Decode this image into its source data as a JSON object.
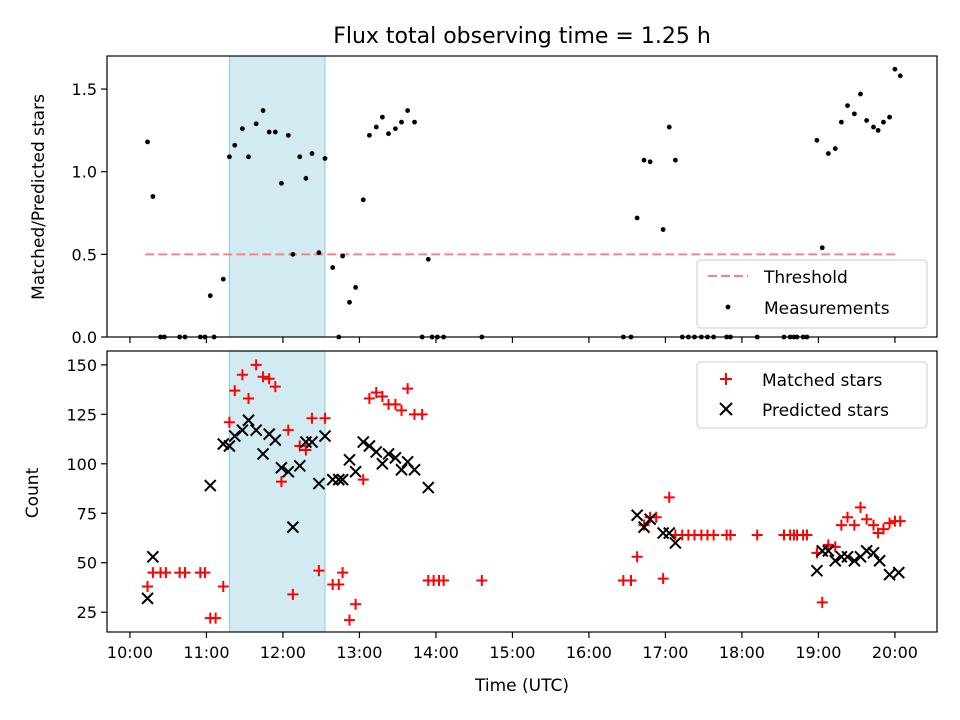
{
  "title": "Flux total observing time = 1.25 h",
  "chart_data": [
    {
      "type": "scatter",
      "panel": "top",
      "ylabel": "Matched/Predicted stars",
      "ylim": [
        0,
        1.7
      ],
      "yticks": [
        0.0,
        0.5,
        1.0,
        1.5
      ],
      "yticklabels": [
        "0.0",
        "0.5",
        "1.0",
        "1.5"
      ],
      "xlim": [
        9.7,
        20.55
      ],
      "xticks": [
        10,
        11,
        12,
        13,
        14,
        15,
        16,
        17,
        18,
        19,
        20
      ],
      "show_xticklabels": false,
      "shaded_region": {
        "x_start": 11.3,
        "x_end": 12.55,
        "color": "#add8e6"
      },
      "legend": {
        "location": "lower right",
        "entries": [
          "Threshold",
          "Measurements"
        ]
      },
      "threshold": {
        "name": "Threshold",
        "y": 0.5,
        "x_start": 10.2,
        "x_end": 20.05,
        "color": "#ff8080",
        "style": "dashed"
      },
      "series": [
        {
          "name": "Measurements",
          "color": "#000000",
          "marker": "dot",
          "points": [
            [
              10.23,
              1.18
            ],
            [
              10.3,
              0.85
            ],
            [
              10.4,
              0
            ],
            [
              10.45,
              0
            ],
            [
              10.65,
              0
            ],
            [
              10.72,
              0
            ],
            [
              10.92,
              0
            ],
            [
              10.98,
              0
            ],
            [
              11.05,
              0.25
            ],
            [
              11.1,
              0
            ],
            [
              11.22,
              0.35
            ],
            [
              11.3,
              1.09
            ],
            [
              11.37,
              1.16
            ],
            [
              11.47,
              1.26
            ],
            [
              11.55,
              1.09
            ],
            [
              11.65,
              1.29
            ],
            [
              11.74,
              1.37
            ],
            [
              11.82,
              1.24
            ],
            [
              11.9,
              1.24
            ],
            [
              11.98,
              0.93
            ],
            [
              12.07,
              1.22
            ],
            [
              12.13,
              0.5
            ],
            [
              12.22,
              1.09
            ],
            [
              12.3,
              0.96
            ],
            [
              12.38,
              1.11
            ],
            [
              12.47,
              0.51
            ],
            [
              12.55,
              1.08
            ],
            [
              12.65,
              0.42
            ],
            [
              12.73,
              0
            ],
            [
              12.78,
              0.49
            ],
            [
              12.87,
              0.21
            ],
            [
              12.95,
              0.3
            ],
            [
              13.05,
              0.83
            ],
            [
              13.13,
              1.22
            ],
            [
              13.22,
              1.27
            ],
            [
              13.3,
              1.33
            ],
            [
              13.38,
              1.23
            ],
            [
              13.47,
              1.26
            ],
            [
              13.55,
              1.3
            ],
            [
              13.63,
              1.37
            ],
            [
              13.72,
              1.3
            ],
            [
              13.82,
              0
            ],
            [
              13.9,
              0.47
            ],
            [
              13.95,
              0
            ],
            [
              14.02,
              0
            ],
            [
              14.1,
              0
            ],
            [
              14.6,
              0
            ],
            [
              16.45,
              0
            ],
            [
              16.55,
              0
            ],
            [
              16.63,
              0.72
            ],
            [
              16.72,
              1.07
            ],
            [
              16.8,
              1.06
            ],
            [
              16.97,
              0.65
            ],
            [
              17.05,
              1.27
            ],
            [
              17.13,
              1.07
            ],
            [
              17.22,
              0
            ],
            [
              17.3,
              0
            ],
            [
              17.38,
              0
            ],
            [
              17.47,
              0
            ],
            [
              17.55,
              0
            ],
            [
              17.63,
              0
            ],
            [
              17.8,
              0
            ],
            [
              17.85,
              0
            ],
            [
              18.2,
              0
            ],
            [
              18.55,
              0
            ],
            [
              18.63,
              0
            ],
            [
              18.68,
              0
            ],
            [
              18.72,
              0
            ],
            [
              18.8,
              0
            ],
            [
              18.85,
              0
            ],
            [
              18.98,
              1.19
            ],
            [
              19.05,
              0.54
            ],
            [
              19.13,
              1.11
            ],
            [
              19.22,
              1.14
            ],
            [
              19.3,
              1.3
            ],
            [
              19.38,
              1.4
            ],
            [
              19.47,
              1.35
            ],
            [
              19.55,
              1.47
            ],
            [
              19.63,
              1.31
            ],
            [
              19.72,
              1.27
            ],
            [
              19.78,
              1.25
            ],
            [
              19.85,
              1.3
            ],
            [
              19.93,
              1.33
            ],
            [
              20.0,
              1.62
            ],
            [
              20.07,
              1.58
            ]
          ]
        }
      ]
    },
    {
      "type": "scatter",
      "panel": "bottom",
      "xlabel": "Time (UTC)",
      "ylabel": "Count",
      "ylim": [
        15,
        157
      ],
      "yticks": [
        25,
        50,
        75,
        100,
        125,
        150
      ],
      "yticklabels": [
        "25",
        "50",
        "75",
        "100",
        "125",
        "150"
      ],
      "xlim": [
        9.7,
        20.55
      ],
      "xticks": [
        10,
        11,
        12,
        13,
        14,
        15,
        16,
        17,
        18,
        19,
        20
      ],
      "xticklabels": [
        "10:00",
        "11:00",
        "12:00",
        "13:00",
        "14:00",
        "15:00",
        "16:00",
        "17:00",
        "18:00",
        "19:00",
        "20:00"
      ],
      "shaded_region": {
        "x_start": 11.3,
        "x_end": 12.55,
        "color": "#add8e6"
      },
      "legend": {
        "location": "upper right",
        "entries": [
          "Matched stars",
          "Predicted stars"
        ]
      },
      "series": [
        {
          "name": "Matched stars",
          "color": "#ff0000",
          "marker": "plus",
          "points": [
            [
              10.23,
              38
            ],
            [
              10.3,
              45
            ],
            [
              10.4,
              45
            ],
            [
              10.47,
              45
            ],
            [
              10.65,
              45
            ],
            [
              10.72,
              45
            ],
            [
              10.92,
              45
            ],
            [
              10.98,
              45
            ],
            [
              11.05,
              22
            ],
            [
              11.12,
              22
            ],
            [
              11.22,
              38
            ],
            [
              11.3,
              121
            ],
            [
              11.37,
              137
            ],
            [
              11.47,
              145
            ],
            [
              11.55,
              133
            ],
            [
              11.65,
              150
            ],
            [
              11.74,
              144
            ],
            [
              11.82,
              143
            ],
            [
              11.9,
              139
            ],
            [
              11.98,
              91
            ],
            [
              12.07,
              117
            ],
            [
              12.13,
              34
            ],
            [
              12.22,
              109
            ],
            [
              12.3,
              107
            ],
            [
              12.38,
              123
            ],
            [
              12.47,
              46
            ],
            [
              12.55,
              123
            ],
            [
              12.65,
              39
            ],
            [
              12.73,
              39
            ],
            [
              12.78,
              45
            ],
            [
              12.87,
              21
            ],
            [
              12.95,
              29
            ],
            [
              13.05,
              92
            ],
            [
              13.13,
              133
            ],
            [
              13.22,
              136
            ],
            [
              13.3,
              134
            ],
            [
              13.38,
              130
            ],
            [
              13.47,
              130
            ],
            [
              13.55,
              127
            ],
            [
              13.63,
              138
            ],
            [
              13.72,
              125
            ],
            [
              13.82,
              125
            ],
            [
              13.9,
              41
            ],
            [
              13.97,
              41
            ],
            [
              14.04,
              41
            ],
            [
              14.1,
              41
            ],
            [
              14.6,
              41
            ],
            [
              16.45,
              41
            ],
            [
              16.55,
              41
            ],
            [
              16.63,
              53
            ],
            [
              16.72,
              69
            ],
            [
              16.8,
              73
            ],
            [
              16.88,
              73
            ],
            [
              16.97,
              42
            ],
            [
              17.05,
              83
            ],
            [
              17.13,
              64
            ],
            [
              17.22,
              64
            ],
            [
              17.3,
              64
            ],
            [
              17.38,
              64
            ],
            [
              17.47,
              64
            ],
            [
              17.55,
              64
            ],
            [
              17.63,
              64
            ],
            [
              17.8,
              64
            ],
            [
              17.85,
              64
            ],
            [
              18.2,
              64
            ],
            [
              18.55,
              64
            ],
            [
              18.63,
              64
            ],
            [
              18.68,
              64
            ],
            [
              18.72,
              64
            ],
            [
              18.8,
              64
            ],
            [
              18.85,
              64
            ],
            [
              18.98,
              55
            ],
            [
              19.05,
              30
            ],
            [
              19.13,
              59
            ],
            [
              19.22,
              58
            ],
            [
              19.3,
              69
            ],
            [
              19.38,
              73
            ],
            [
              19.47,
              69
            ],
            [
              19.55,
              78
            ],
            [
              19.63,
              72
            ],
            [
              19.72,
              69
            ],
            [
              19.78,
              65
            ],
            [
              19.85,
              67
            ],
            [
              19.93,
              70
            ],
            [
              20.0,
              71
            ],
            [
              20.07,
              71
            ]
          ]
        },
        {
          "name": "Predicted stars",
          "color": "#000000",
          "marker": "x",
          "points": [
            [
              10.23,
              32
            ],
            [
              10.3,
              53
            ],
            [
              11.05,
              89
            ],
            [
              11.22,
              110
            ],
            [
              11.3,
              109
            ],
            [
              11.37,
              114
            ],
            [
              11.47,
              117
            ],
            [
              11.55,
              122
            ],
            [
              11.65,
              117
            ],
            [
              11.74,
              105
            ],
            [
              11.82,
              115
            ],
            [
              11.9,
              112
            ],
            [
              11.98,
              98
            ],
            [
              12.07,
              96
            ],
            [
              12.13,
              68
            ],
            [
              12.22,
              99
            ],
            [
              12.3,
              111
            ],
            [
              12.38,
              111
            ],
            [
              12.47,
              90
            ],
            [
              12.55,
              114
            ],
            [
              12.65,
              92
            ],
            [
              12.73,
              92
            ],
            [
              12.78,
              92
            ],
            [
              12.87,
              102
            ],
            [
              12.95,
              96
            ],
            [
              13.05,
              111
            ],
            [
              13.13,
              109
            ],
            [
              13.22,
              106
            ],
            [
              13.3,
              100
            ],
            [
              13.38,
              105
            ],
            [
              13.47,
              103
            ],
            [
              13.55,
              97
            ],
            [
              13.63,
              101
            ],
            [
              13.72,
              97
            ],
            [
              13.9,
              88
            ],
            [
              16.63,
              74
            ],
            [
              16.72,
              68
            ],
            [
              16.8,
              72
            ],
            [
              16.97,
              65
            ],
            [
              17.05,
              65
            ],
            [
              17.13,
              60
            ],
            [
              18.98,
              46
            ],
            [
              19.05,
              56
            ],
            [
              19.13,
              56
            ],
            [
              19.22,
              51
            ],
            [
              19.3,
              53
            ],
            [
              19.38,
              53
            ],
            [
              19.47,
              51
            ],
            [
              19.55,
              53
            ],
            [
              19.63,
              56
            ],
            [
              19.72,
              55
            ],
            [
              19.8,
              51
            ],
            [
              19.93,
              44
            ],
            [
              20.05,
              45
            ]
          ]
        }
      ]
    }
  ]
}
